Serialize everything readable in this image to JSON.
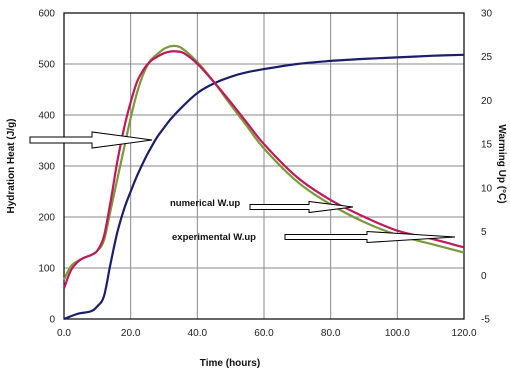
{
  "chart_data": {
    "type": "line",
    "title": "",
    "xlabel": "Time (hours)",
    "ylabel_left": "Hydration Heat (J/g)",
    "ylabel_right": "Warming Up (°C)",
    "xlim": [
      0,
      120
    ],
    "ylim_left": [
      0,
      600
    ],
    "ylim_right": [
      -5,
      30
    ],
    "x_ticks": [
      "0.0",
      "20.0",
      "40.0",
      "60.0",
      "80.0",
      "100.0",
      "120.0"
    ],
    "y_left_ticks": [
      "0",
      "100",
      "200",
      "300",
      "400",
      "500",
      "600"
    ],
    "y_right_ticks": [
      "-5",
      "0",
      "5",
      "10",
      "15",
      "20",
      "25",
      "30"
    ],
    "grid": true,
    "annotations": [
      {
        "text": "numerical W.up",
        "target": "Warming Up"
      },
      {
        "text": "experimental W.up",
        "target": "Warming Up"
      }
    ],
    "series": [
      {
        "axis": "left",
        "color": "#1b1f6b",
        "x": [
          0,
          4,
          8,
          10,
          12,
          14,
          16,
          18,
          20,
          22,
          24,
          26,
          28,
          30,
          32,
          35,
          40,
          45,
          50,
          55,
          60,
          70,
          80,
          90,
          100,
          110,
          120
        ],
        "values": [
          0,
          10,
          15,
          25,
          45,
          110,
          170,
          215,
          250,
          282,
          310,
          335,
          357,
          375,
          392,
          413,
          443,
          462,
          475,
          484,
          490,
          500,
          506,
          510,
          513,
          516,
          518
        ]
      },
      {
        "axis": "right",
        "color": "#7a9a3a",
        "x": [
          0,
          2,
          4,
          6,
          8,
          10,
          12,
          14,
          16,
          18,
          20,
          22,
          24,
          26,
          28,
          30,
          32,
          34,
          36,
          40,
          45,
          50,
          55,
          60,
          70,
          80,
          90,
          100,
          110,
          120
        ],
        "values": [
          -0.5,
          1.0,
          1.6,
          2.0,
          2.3,
          2.8,
          4.0,
          7.5,
          11.0,
          14.5,
          18.0,
          21.0,
          23.2,
          24.6,
          25.3,
          25.9,
          26.2,
          26.2,
          25.8,
          24.4,
          22.1,
          19.5,
          17.0,
          14.5,
          10.7,
          8.1,
          6.1,
          4.6,
          3.6,
          2.6
        ]
      },
      {
        "axis": "right",
        "color": "#c2185b",
        "x": [
          0,
          2,
          4,
          6,
          8,
          10,
          12,
          14,
          16,
          18,
          20,
          22,
          24,
          26,
          28,
          30,
          32,
          34,
          36,
          40,
          45,
          50,
          55,
          60,
          70,
          80,
          90,
          100,
          110,
          120
        ],
        "values": [
          -1.5,
          0.5,
          1.5,
          2.0,
          2.3,
          2.8,
          4.5,
          8.5,
          13.0,
          16.8,
          19.8,
          22.2,
          23.6,
          24.5,
          25.0,
          25.4,
          25.6,
          25.6,
          25.4,
          24.2,
          22.1,
          19.8,
          17.4,
          15.0,
          11.2,
          8.6,
          6.7,
          5.1,
          4.2,
          3.2
        ]
      }
    ]
  }
}
